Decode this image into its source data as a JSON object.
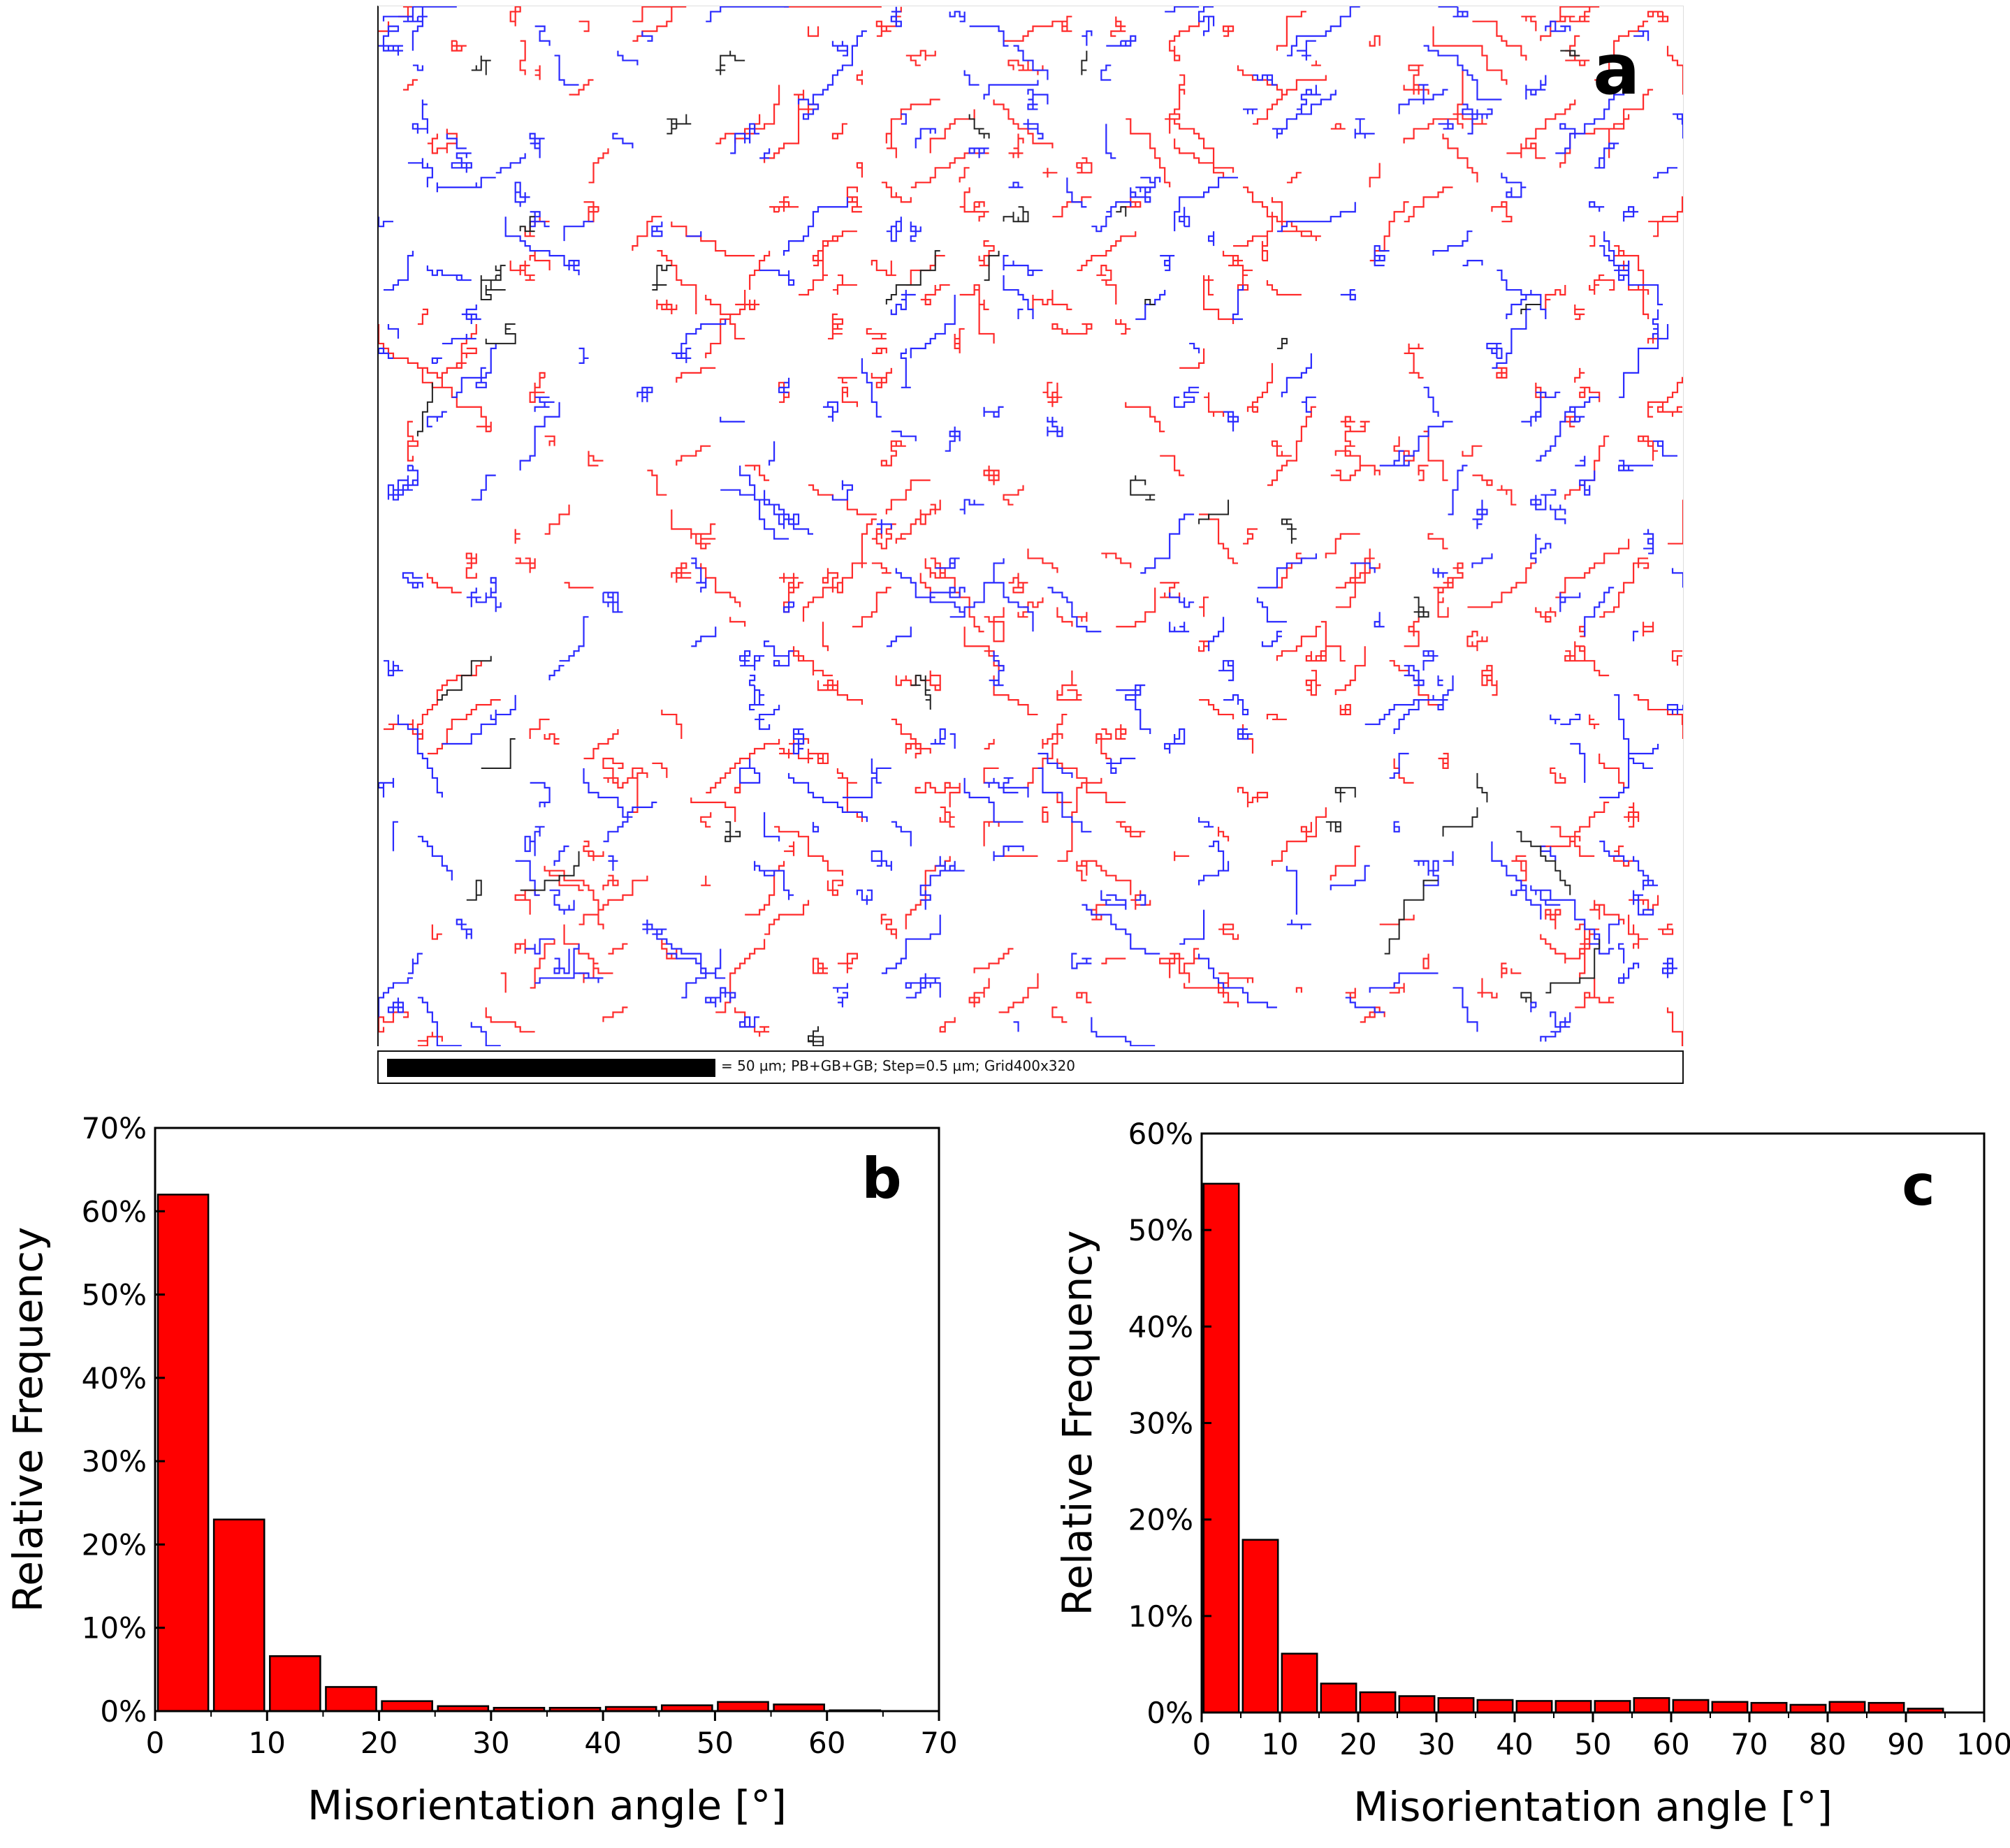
{
  "panel_a": {
    "label": "a",
    "scale_text": "= 50 µm; PB+GB+GB; Step=0.5 µm; Grid400x320",
    "boundary_colors": [
      "#ff2a2a",
      "#2a2aff",
      "#222222"
    ]
  },
  "colors": {
    "bar_fill": "#ff0000",
    "bar_stroke": "#000000"
  },
  "chart_data": [
    {
      "type": "bar",
      "panel_label": "b",
      "title": "",
      "xlabel": "Misorientation angle [°]",
      "ylabel": "Relative Frequency",
      "xlim": [
        0,
        70
      ],
      "ylim": [
        0,
        0.7
      ],
      "x_ticks": [
        0,
        10,
        20,
        30,
        40,
        50,
        60,
        70
      ],
      "y_ticks": [
        0,
        0.1,
        0.2,
        0.3,
        0.4,
        0.5,
        0.6,
        0.7
      ],
      "y_tick_labels": [
        "0%",
        "10%",
        "20%",
        "30%",
        "40%",
        "50%",
        "60%",
        "70%"
      ],
      "x_tick_labels": [
        "0",
        "10",
        "20",
        "30",
        "40",
        "50",
        "60",
        "70"
      ],
      "bin_width": 5,
      "x": [
        2.5,
        7.5,
        12.5,
        17.5,
        22.5,
        27.5,
        32.5,
        37.5,
        42.5,
        47.5,
        52.5,
        57.5,
        62.5
      ],
      "values": [
        0.62,
        0.23,
        0.066,
        0.029,
        0.012,
        0.006,
        0.004,
        0.004,
        0.005,
        0.007,
        0.011,
        0.008,
        0.001
      ]
    },
    {
      "type": "bar",
      "panel_label": "c",
      "title": "",
      "xlabel": "Misorientation angle [°]",
      "ylabel": "Relative Frequency",
      "xlim": [
        0,
        100
      ],
      "ylim": [
        0,
        0.6
      ],
      "x_ticks": [
        0,
        10,
        20,
        30,
        40,
        50,
        60,
        70,
        80,
        90,
        100
      ],
      "y_ticks": [
        0,
        0.1,
        0.2,
        0.3,
        0.4,
        0.5,
        0.6
      ],
      "y_tick_labels": [
        "0%",
        "10%",
        "20%",
        "30%",
        "40%",
        "50%",
        "60%"
      ],
      "x_tick_labels": [
        "0",
        "10",
        "20",
        "30",
        "40",
        "50",
        "60",
        "70",
        "80",
        "90",
        "100"
      ],
      "bin_width": 5,
      "x": [
        2.5,
        7.5,
        12.5,
        17.5,
        22.5,
        27.5,
        32.5,
        37.5,
        42.5,
        47.5,
        52.5,
        57.5,
        62.5,
        67.5,
        72.5,
        77.5,
        82.5,
        87.5,
        92.5
      ],
      "values": [
        0.548,
        0.179,
        0.061,
        0.03,
        0.021,
        0.017,
        0.015,
        0.013,
        0.012,
        0.012,
        0.012,
        0.015,
        0.013,
        0.011,
        0.01,
        0.008,
        0.011,
        0.01,
        0.004
      ]
    }
  ]
}
